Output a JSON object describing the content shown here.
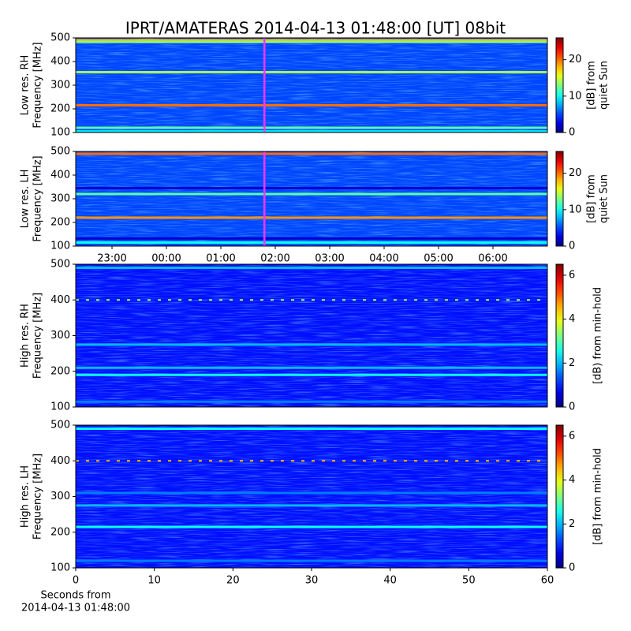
{
  "title": "IPRT/AMATERAS 2014-04-13 01:48:00 [UT]   08bit",
  "chart_data": [
    {
      "type": "heatmap",
      "ylabel": [
        "Low res. RH",
        "Frequency [MHz]"
      ],
      "ylim": [
        100,
        500
      ],
      "yticks": [
        100,
        200,
        300,
        400,
        500
      ],
      "xlim": [
        -1.667,
        7.0
      ],
      "cursor": 1.8,
      "background": 5,
      "colorbar": {
        "label": [
          "[dB] from",
          "quiet Sun"
        ],
        "lim": [
          0,
          26
        ],
        "ticks": [
          0,
          10,
          20
        ]
      },
      "bands": [
        {
          "freq": 490,
          "level": 18
        },
        {
          "freq": 483,
          "level": 13
        },
        {
          "freq": 355,
          "level": 14
        },
        {
          "freq": 215,
          "level": 20
        },
        {
          "freq": 120,
          "level": 12
        },
        {
          "freq": 105,
          "level": 9
        }
      ]
    },
    {
      "type": "heatmap",
      "ylabel": [
        "Low res. LH",
        "Frequency [MHz]"
      ],
      "ylim": [
        100,
        500
      ],
      "yticks": [
        100,
        200,
        300,
        400,
        500
      ],
      "xlim": [
        -1.667,
        7.0
      ],
      "cursor": 1.8,
      "background": 5,
      "xticks": [
        {
          "value": -1,
          "label": "23:00"
        },
        {
          "value": 0,
          "label": "00:00"
        },
        {
          "value": 1,
          "label": "01:00"
        },
        {
          "value": 2,
          "label": "02:00"
        },
        {
          "value": 3,
          "label": "03:00"
        },
        {
          "value": 4,
          "label": "04:00"
        },
        {
          "value": 5,
          "label": "05:00"
        },
        {
          "value": 6,
          "label": "06:00"
        }
      ],
      "colorbar": {
        "label": [
          "[dB] from",
          "quiet Sun"
        ],
        "lim": [
          0,
          26
        ],
        "ticks": [
          0,
          10,
          20
        ]
      },
      "bands": [
        {
          "freq": 490,
          "level": 20
        },
        {
          "freq": 345,
          "level": 2
        },
        {
          "freq": 320,
          "level": 12
        },
        {
          "freq": 220,
          "level": 19
        },
        {
          "freq": 132,
          "level": 2
        },
        {
          "freq": 115,
          "level": 10
        }
      ]
    },
    {
      "type": "heatmap",
      "ylabel": [
        "High res. RH",
        "Frequency [MHz]"
      ],
      "ylim": [
        100,
        500
      ],
      "yticks": [
        100,
        200,
        300,
        400,
        500
      ],
      "xlim": [
        0,
        60
      ],
      "background": 0.9,
      "colorbar": {
        "label": [
          "[dB) from min-hold"
        ],
        "lim": [
          0,
          6.5
        ],
        "ticks": [
          0,
          2,
          4,
          6
        ]
      },
      "bands": [
        {
          "freq": 490,
          "level": 2
        },
        {
          "freq": 400,
          "level": 3.5,
          "dashed": true
        },
        {
          "freq": 275,
          "level": 2
        },
        {
          "freq": 210,
          "level": 2
        },
        {
          "freq": 190,
          "level": 2.5
        },
        {
          "freq": 115,
          "level": 1.6
        }
      ]
    },
    {
      "type": "heatmap",
      "ylabel": [
        "High res. LH",
        "Frequency [MHz]"
      ],
      "ylim": [
        100,
        500
      ],
      "yticks": [
        100,
        200,
        300,
        400,
        500
      ],
      "xlim": [
        0,
        60
      ],
      "background": 0.9,
      "xticks": [
        0,
        10,
        20,
        30,
        40,
        50,
        60
      ],
      "xlabel": [
        "Seconds from",
        "2014-04-13 01:48:00"
      ],
      "colorbar": {
        "label": [
          "[dB] from min-hold"
        ],
        "lim": [
          0,
          6.5
        ],
        "ticks": [
          0,
          2,
          4,
          6
        ]
      },
      "bands": [
        {
          "freq": 490,
          "level": 2.5
        },
        {
          "freq": 400,
          "level": 4.5,
          "dashed": true
        },
        {
          "freq": 310,
          "level": 1.6
        },
        {
          "freq": 275,
          "level": 2
        },
        {
          "freq": 215,
          "level": 2.5
        },
        {
          "freq": 120,
          "level": 1.6
        }
      ]
    }
  ]
}
